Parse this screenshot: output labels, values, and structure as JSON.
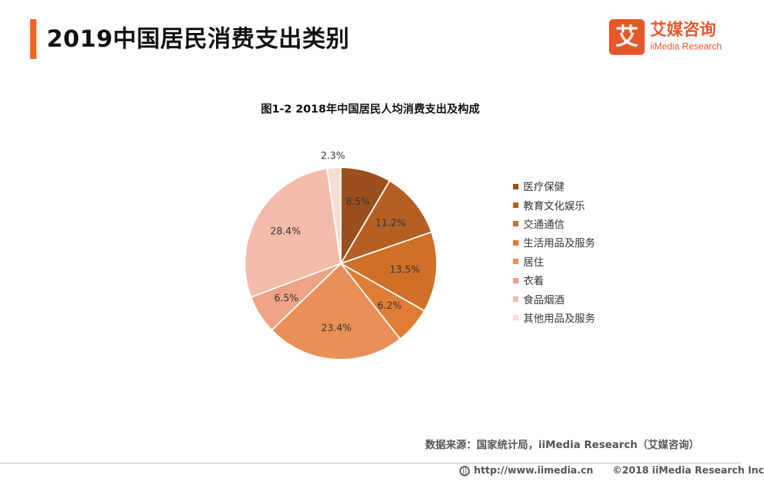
{
  "header": {
    "title": "2019中国居民消费支出类别",
    "logo_mark": "艾",
    "logo_cn": "艾媒咨询",
    "logo_en": "iiMedia Research"
  },
  "chart_data": {
    "type": "pie",
    "title": "图1-2 2018年中国居民人均消费支出及构成",
    "labels": [
      "医疗保健",
      "教育文化娱乐",
      "交通通信",
      "生活用品及服务",
      "居住",
      "衣着",
      "食品烟酒",
      "其他用品及服务"
    ],
    "values": [
      8.5,
      11.2,
      13.5,
      6.2,
      23.4,
      6.5,
      28.4,
      2.3
    ],
    "value_labels": [
      "8.5%",
      "11.2%",
      "13.5%",
      "6.2%",
      "23.4%",
      "6.5%",
      "28.4%",
      "2.3%"
    ],
    "colors": [
      "#9b4f1c",
      "#b45f23",
      "#cf6f28",
      "#e07c33",
      "#e98f57",
      "#eea286",
      "#f3bcaa",
      "#f8ddd2"
    ],
    "legend_position": "right",
    "start": "12 o'clock, clockwise"
  },
  "footer": {
    "source": "数据来源：国家统计局，iiMedia Research（艾媒咨询）",
    "url": "http://www.iimedia.cn",
    "copyright": "©2018  iiMedia Research  Inc"
  }
}
